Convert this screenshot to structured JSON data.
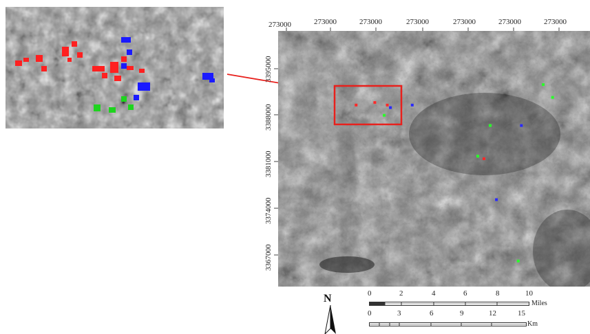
{
  "inset": {
    "red_marks": [
      [
        14,
        78,
        10,
        8
      ],
      [
        26,
        74,
        8,
        6
      ],
      [
        44,
        70,
        10,
        10
      ],
      [
        52,
        86,
        8,
        8
      ],
      [
        82,
        58,
        10,
        14
      ],
      [
        96,
        50,
        8,
        8
      ],
      [
        104,
        66,
        8,
        8
      ],
      [
        90,
        74,
        6,
        6
      ],
      [
        126,
        86,
        18,
        8
      ],
      [
        140,
        96,
        8,
        8
      ],
      [
        152,
        80,
        12,
        16
      ],
      [
        168,
        72,
        8,
        8
      ],
      [
        158,
        100,
        10,
        8
      ],
      [
        176,
        86,
        10,
        6
      ],
      [
        194,
        90,
        8,
        6
      ]
    ],
    "blue_marks": [
      [
        168,
        44,
        14,
        8
      ],
      [
        176,
        62,
        8,
        8
      ],
      [
        168,
        82,
        8,
        8
      ],
      [
        192,
        110,
        18,
        12
      ],
      [
        186,
        128,
        8,
        8
      ],
      [
        286,
        96,
        16,
        10
      ],
      [
        296,
        104,
        8,
        6
      ]
    ],
    "green_marks": [
      [
        168,
        130,
        8,
        8
      ],
      [
        128,
        142,
        10,
        10
      ],
      [
        150,
        146,
        10,
        8
      ],
      [
        178,
        142,
        8,
        8
      ]
    ]
  },
  "map": {
    "x_ticks": [
      "273000",
      "273000",
      "273000",
      "273000",
      "273000",
      "273000",
      "273000"
    ],
    "y_ticks": [
      "3395000",
      "3388000",
      "3381000",
      "3374000",
      "3367000"
    ],
    "marks": [
      {
        "color": "#ff2a2a",
        "x": 0.25,
        "y": 0.29
      },
      {
        "color": "#ff2a2a",
        "x": 0.31,
        "y": 0.28
      },
      {
        "color": "#ff2a2a",
        "x": 0.35,
        "y": 0.29
      },
      {
        "color": "#2a2aff",
        "x": 0.36,
        "y": 0.3
      },
      {
        "color": "#2a2aff",
        "x": 0.43,
        "y": 0.29
      },
      {
        "color": "#2aff2a",
        "x": 0.34,
        "y": 0.33
      },
      {
        "color": "#2aff2a",
        "x": 0.68,
        "y": 0.37
      },
      {
        "color": "#2a2aff",
        "x": 0.78,
        "y": 0.37
      },
      {
        "color": "#2aff2a",
        "x": 0.85,
        "y": 0.21
      },
      {
        "color": "#2aff2a",
        "x": 0.88,
        "y": 0.26
      },
      {
        "color": "#ff2a2a",
        "x": 0.66,
        "y": 0.5
      },
      {
        "color": "#2aff2a",
        "x": 0.64,
        "y": 0.49
      },
      {
        "color": "#2a2aff",
        "x": 0.7,
        "y": 0.66
      },
      {
        "color": "#2aff2a",
        "x": 0.77,
        "y": 0.9
      }
    ]
  },
  "north_arrow": {
    "label": "N"
  },
  "scalebar": {
    "miles_ticks": [
      "0",
      "2",
      "4",
      "6",
      "8",
      "10"
    ],
    "miles_unit": "Miles",
    "km_ticks": [
      "0",
      "3",
      "6",
      "9",
      "12",
      "15"
    ],
    "km_unit": "Km"
  },
  "colors": {
    "highlight": "#e8201c"
  }
}
